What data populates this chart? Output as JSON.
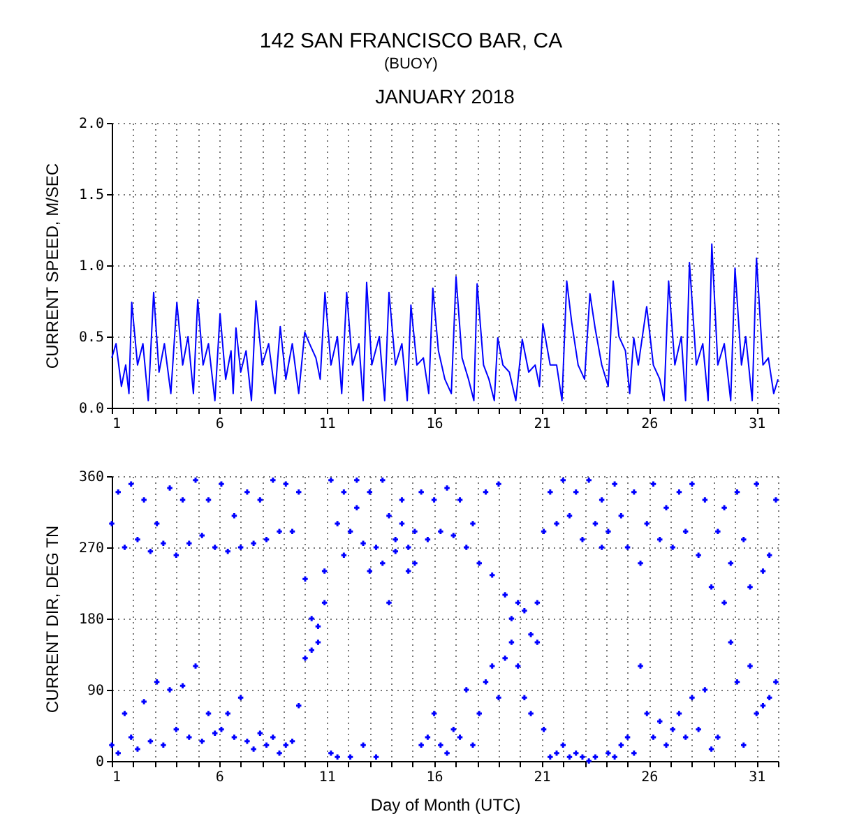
{
  "chart_data": [
    {
      "type": "line",
      "title": "142 SAN FRANCISCO BAR, CA",
      "subtitle": "(BUOY)",
      "annotations": [
        "JANUARY 2018"
      ],
      "ylabel": "CURRENT SPEED, M/SEC",
      "marker": "none",
      "line_style": "solid",
      "grid": true,
      "xlim": [
        1,
        32
      ],
      "ylim": [
        0,
        2
      ],
      "xticks": [
        1,
        {
          "value": 2,
          "label": null
        },
        {
          "value": 3,
          "label": null
        },
        {
          "value": 4,
          "label": null
        },
        {
          "value": 5,
          "label": null
        },
        6,
        {
          "value": 7,
          "label": null
        },
        {
          "value": 8,
          "label": null
        },
        {
          "value": 9,
          "label": null
        },
        {
          "value": 10,
          "label": null
        },
        11,
        {
          "value": 12,
          "label": null
        },
        {
          "value": 13,
          "label": null
        },
        {
          "value": 14,
          "label": null
        },
        {
          "value": 15,
          "label": null
        },
        16,
        {
          "value": 17,
          "label": null
        },
        {
          "value": 18,
          "label": null
        },
        {
          "value": 19,
          "label": null
        },
        {
          "value": 20,
          "label": null
        },
        21,
        {
          "value": 22,
          "label": null
        },
        {
          "value": 23,
          "label": null
        },
        {
          "value": 24,
          "label": null
        },
        {
          "value": 25,
          "label": null
        },
        26,
        {
          "value": 27,
          "label": null
        },
        {
          "value": 28,
          "label": null
        },
        {
          "value": 29,
          "label": null
        },
        {
          "value": 30,
          "label": null
        },
        31,
        {
          "value": 32,
          "label": null
        }
      ],
      "yticks": [
        {
          "value": 0,
          "label": "0.0"
        },
        {
          "value": 0.5,
          "label": "0.5"
        },
        {
          "value": 1,
          "label": "1.0"
        },
        {
          "value": 1.5,
          "label": "1.5"
        },
        {
          "value": 2,
          "label": "2.0"
        }
      ],
      "series": [
        {
          "color": "#0000ff",
          "x": [
            1.0,
            1.2,
            1.45,
            1.65,
            1.8,
            1.93,
            2.2,
            2.45,
            2.7,
            2.95,
            3.2,
            3.45,
            3.75,
            4.03,
            4.3,
            4.55,
            4.8,
            5.0,
            5.25,
            5.5,
            5.8,
            6.04,
            6.3,
            6.55,
            6.65,
            6.78,
            7.0,
            7.25,
            7.5,
            7.71,
            8.0,
            8.3,
            8.6,
            8.84,
            9.1,
            9.4,
            9.7,
            9.98,
            10.2,
            10.5,
            10.7,
            10.92,
            11.2,
            11.5,
            11.7,
            11.93,
            12.2,
            12.5,
            12.7,
            12.86,
            13.1,
            13.45,
            13.7,
            13.9,
            14.2,
            14.5,
            14.75,
            14.92,
            15.2,
            15.5,
            15.75,
            15.94,
            16.2,
            16.5,
            16.8,
            17.02,
            17.3,
            17.6,
            17.85,
            18.0,
            18.3,
            18.55,
            18.8,
            18.96,
            19.2,
            19.5,
            19.8,
            20.1,
            20.4,
            20.7,
            20.9,
            21.06,
            21.4,
            21.7,
            21.95,
            22.17,
            22.4,
            22.7,
            23.0,
            23.25,
            23.5,
            23.8,
            24.1,
            24.33,
            24.6,
            24.9,
            25.1,
            25.29,
            25.5,
            25.89,
            26.2,
            26.5,
            26.7,
            26.91,
            27.2,
            27.5,
            27.7,
            27.88,
            28.2,
            28.5,
            28.75,
            28.92,
            29.2,
            29.5,
            29.8,
            30.0,
            30.3,
            30.5,
            30.8,
            31.0,
            31.3,
            31.55,
            31.8,
            32.0
          ],
          "values": [
            0.35,
            0.45,
            0.15,
            0.3,
            0.1,
            0.74,
            0.3,
            0.45,
            0.05,
            0.81,
            0.25,
            0.45,
            0.1,
            0.74,
            0.3,
            0.5,
            0.1,
            0.76,
            0.3,
            0.45,
            0.05,
            0.66,
            0.2,
            0.4,
            0.1,
            0.56,
            0.25,
            0.4,
            0.05,
            0.75,
            0.3,
            0.45,
            0.1,
            0.57,
            0.2,
            0.45,
            0.1,
            0.53,
            0.45,
            0.35,
            0.2,
            0.81,
            0.3,
            0.5,
            0.1,
            0.81,
            0.3,
            0.45,
            0.05,
            0.88,
            0.3,
            0.5,
            0.05,
            0.81,
            0.3,
            0.45,
            0.05,
            0.72,
            0.3,
            0.35,
            0.1,
            0.84,
            0.4,
            0.2,
            0.1,
            0.92,
            0.35,
            0.2,
            0.05,
            0.87,
            0.3,
            0.2,
            0.05,
            0.49,
            0.3,
            0.25,
            0.05,
            0.48,
            0.25,
            0.3,
            0.15,
            0.59,
            0.3,
            0.3,
            0.05,
            0.89,
            0.6,
            0.3,
            0.2,
            0.8,
            0.55,
            0.3,
            0.15,
            0.89,
            0.5,
            0.4,
            0.1,
            0.49,
            0.3,
            0.71,
            0.3,
            0.2,
            0.05,
            0.89,
            0.3,
            0.5,
            0.05,
            1.02,
            0.3,
            0.45,
            0.05,
            1.15,
            0.3,
            0.45,
            0.05,
            0.98,
            0.3,
            0.5,
            0.05,
            1.05,
            0.3,
            0.35,
            0.1,
            0.2
          ]
        }
      ]
    },
    {
      "type": "scatter",
      "ylabel": "CURRENT DIR, DEG TN",
      "xlabel": "Day of Month (UTC)",
      "marker": "cross",
      "grid": true,
      "xlim": [
        1,
        32
      ],
      "ylim": [
        0,
        360
      ],
      "xticks": [
        1,
        {
          "value": 2,
          "label": null
        },
        {
          "value": 3,
          "label": null
        },
        {
          "value": 4,
          "label": null
        },
        {
          "value": 5,
          "label": null
        },
        6,
        {
          "value": 7,
          "label": null
        },
        {
          "value": 8,
          "label": null
        },
        {
          "value": 9,
          "label": null
        },
        {
          "value": 10,
          "label": null
        },
        11,
        {
          "value": 12,
          "label": null
        },
        {
          "value": 13,
          "label": null
        },
        {
          "value": 14,
          "label": null
        },
        {
          "value": 15,
          "label": null
        },
        16,
        {
          "value": 17,
          "label": null
        },
        {
          "value": 18,
          "label": null
        },
        {
          "value": 19,
          "label": null
        },
        {
          "value": 20,
          "label": null
        },
        21,
        {
          "value": 22,
          "label": null
        },
        {
          "value": 23,
          "label": null
        },
        {
          "value": 24,
          "label": null
        },
        {
          "value": 25,
          "label": null
        },
        26,
        {
          "value": 27,
          "label": null
        },
        {
          "value": 28,
          "label": null
        },
        {
          "value": 29,
          "label": null
        },
        {
          "value": 30,
          "label": null
        },
        31,
        {
          "value": 32,
          "label": null
        }
      ],
      "yticks": [
        0,
        90,
        180,
        270,
        360
      ],
      "series": [
        {
          "color": "#0000ff",
          "x": [
            1.0,
            1.0,
            1.3,
            1.3,
            1.6,
            1.6,
            1.9,
            1.9,
            2.2,
            2.2,
            2.5,
            2.5,
            2.8,
            2.8,
            3.1,
            3.1,
            3.4,
            3.4,
            3.7,
            3.7,
            4.0,
            4.0,
            4.3,
            4.3,
            4.6,
            4.6,
            4.9,
            4.9,
            5.2,
            5.2,
            5.5,
            5.5,
            5.8,
            5.8,
            6.1,
            6.1,
            6.4,
            6.4,
            6.7,
            6.7,
            7.0,
            7.0,
            7.3,
            7.3,
            7.6,
            7.6,
            7.9,
            7.9,
            8.2,
            8.2,
            8.5,
            8.5,
            8.8,
            8.8,
            9.1,
            9.1,
            9.4,
            9.4,
            9.7,
            9.7,
            10.0,
            10.0,
            10.3,
            10.3,
            10.6,
            10.6,
            10.9,
            10.9,
            11.2,
            11.2,
            11.5,
            11.5,
            11.8,
            11.8,
            12.1,
            12.1,
            12.4,
            12.4,
            12.7,
            12.7,
            13.0,
            13.0,
            13.3,
            13.3,
            13.6,
            13.6,
            13.9,
            13.9,
            14.2,
            14.2,
            14.5,
            14.5,
            14.8,
            14.8,
            15.1,
            15.1,
            15.4,
            15.4,
            15.7,
            15.7,
            16.0,
            16.0,
            16.3,
            16.3,
            16.6,
            16.6,
            16.9,
            16.9,
            17.2,
            17.2,
            17.5,
            17.5,
            17.8,
            17.8,
            18.1,
            18.1,
            18.4,
            18.4,
            18.7,
            18.7,
            19.0,
            19.0,
            19.3,
            19.3,
            19.6,
            19.6,
            19.9,
            19.9,
            20.2,
            20.2,
            20.5,
            20.5,
            20.8,
            20.8,
            21.1,
            21.1,
            21.4,
            21.4,
            21.7,
            21.7,
            22.0,
            22.0,
            22.3,
            22.3,
            22.6,
            22.6,
            22.9,
            22.9,
            23.2,
            23.2,
            23.5,
            23.5,
            23.8,
            23.8,
            24.1,
            24.1,
            24.4,
            24.4,
            24.7,
            24.7,
            25.0,
            25.0,
            25.3,
            25.3,
            25.6,
            25.6,
            25.9,
            25.9,
            26.2,
            26.2,
            26.5,
            26.5,
            26.8,
            26.8,
            27.1,
            27.1,
            27.4,
            27.4,
            27.7,
            27.7,
            28.0,
            28.0,
            28.3,
            28.3,
            28.6,
            28.6,
            28.9,
            28.9,
            29.2,
            29.2,
            29.5,
            29.5,
            29.8,
            29.8,
            30.1,
            30.1,
            30.4,
            30.4,
            30.7,
            30.7,
            31.0,
            31.0,
            31.3,
            31.3,
            31.6,
            31.6,
            31.9,
            31.9
          ],
          "values": [
            300,
            20,
            340,
            10,
            270,
            60,
            350,
            30,
            280,
            15,
            330,
            75,
            265,
            25,
            300,
            100,
            275,
            20,
            345,
            90,
            260,
            40,
            330,
            95,
            275,
            30,
            355,
            120,
            285,
            25,
            330,
            60,
            270,
            35,
            350,
            40,
            265,
            60,
            310,
            30,
            270,
            80,
            340,
            25,
            275,
            15,
            330,
            35,
            280,
            20,
            355,
            30,
            290,
            10,
            350,
            20,
            290,
            25,
            340,
            70,
            230,
            130,
            180,
            140,
            150,
            170,
            240,
            200,
            355,
            10,
            300,
            5,
            340,
            260,
            290,
            5,
            355,
            320,
            275,
            20,
            340,
            240,
            270,
            5,
            355,
            250,
            310,
            200,
            280,
            265,
            330,
            300,
            270,
            240,
            290,
            250,
            340,
            20,
            280,
            30,
            330,
            60,
            290,
            20,
            345,
            10,
            285,
            40,
            330,
            30,
            270,
            90,
            300,
            20,
            250,
            60,
            340,
            100,
            235,
            120,
            350,
            80,
            210,
            130,
            180,
            150,
            200,
            120,
            190,
            80,
            160,
            60,
            200,
            150,
            290,
            40,
            340,
            5,
            300,
            10,
            355,
            20,
            310,
            5,
            340,
            10,
            280,
            5,
            355,
            0,
            300,
            5,
            330,
            270,
            290,
            10,
            350,
            5,
            310,
            20,
            270,
            30,
            340,
            10,
            250,
            120,
            300,
            60,
            350,
            30,
            280,
            50,
            320,
            20,
            270,
            40,
            340,
            60,
            290,
            30,
            350,
            80,
            260,
            40,
            330,
            90,
            220,
            15,
            290,
            30,
            320,
            200,
            250,
            150,
            340,
            100,
            280,
            20,
            220,
            120,
            350,
            60,
            240,
            70,
            260,
            80,
            330,
            100
          ]
        }
      ]
    }
  ]
}
